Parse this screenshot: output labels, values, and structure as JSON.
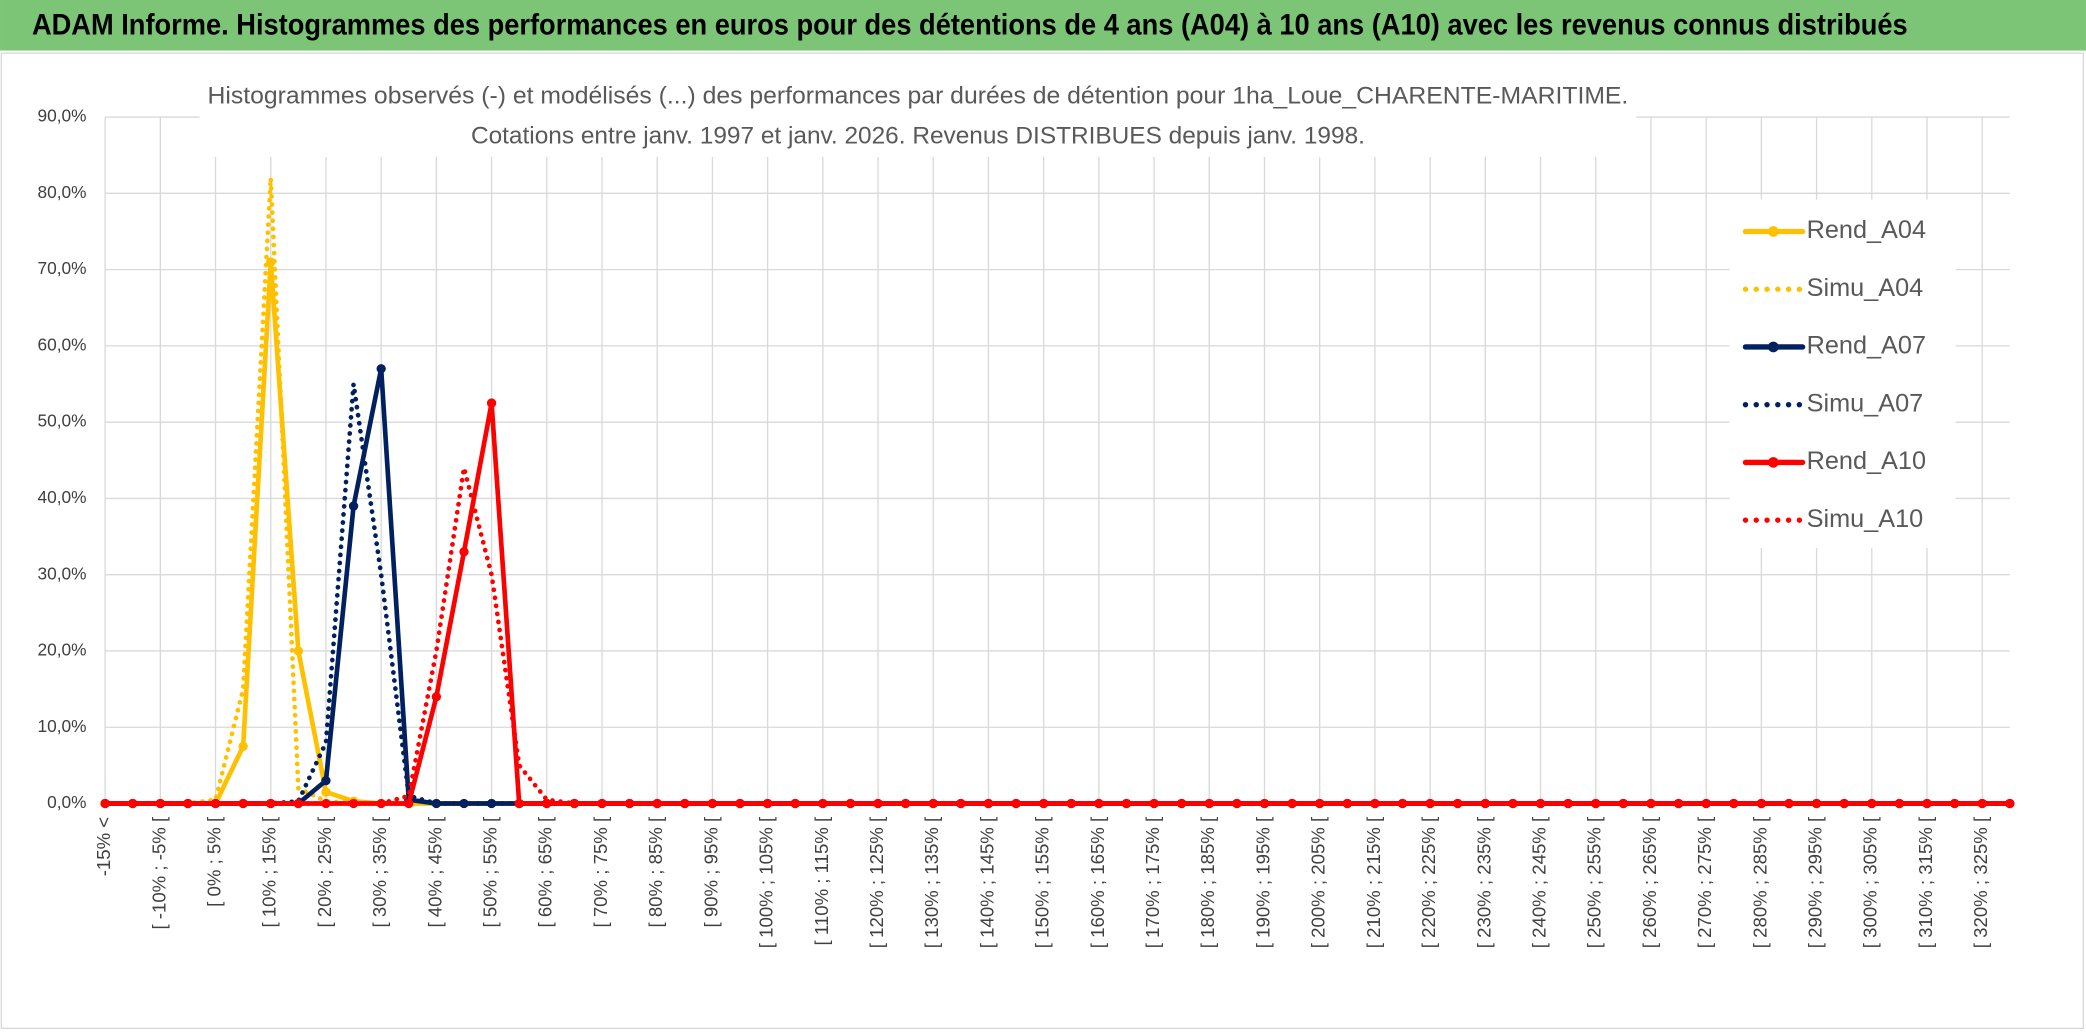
{
  "header": {
    "title": "ADAM Informe. Histogrammes des performances en euros pour des détentions de 4 ans (A04) à 10 ans (A10) avec les revenus connus distribués"
  },
  "chart_data": {
    "type": "line",
    "title": "Histogrammes observés (-) et modélisés (...) des performances par durées de détention pour 1ha_Loue_CHARENTE-MARITIME.",
    "subtitle": "Cotations entre janv. 1997 et janv. 2026. Revenus DISTRIBUES depuis janv. 1998.",
    "categories": [
      "-15% <",
      null,
      "[ -10% ; -5% [",
      null,
      "[ 0% ; 5% [",
      null,
      "[ 10% ; 15% [",
      null,
      "[ 20% ; 25% [",
      null,
      "[ 30% ; 35% [",
      null,
      "[ 40% ; 45% [",
      null,
      "[ 50% ; 55% [",
      null,
      "[ 60% ; 65% [",
      null,
      "[ 70% ; 75% [",
      null,
      "[ 80% ; 85% [",
      null,
      "[ 90% ; 95% [",
      null,
      "[ 100% ; 105% [",
      null,
      "[ 110% ; 115% [",
      null,
      "[ 120% ; 125% [",
      null,
      "[ 130% ; 135% [",
      null,
      "[ 140% ; 145% [",
      null,
      "[ 150% ; 155% [",
      null,
      "[ 160% ; 165% [",
      null,
      "[ 170% ; 175% [",
      null,
      "[ 180% ; 185% [",
      null,
      "[ 190% ; 195% [",
      null,
      "[ 200% ; 205% [",
      null,
      "[ 210% ; 215% [",
      null,
      "[ 220% ; 225% [",
      null,
      "[ 230% ; 235% [",
      null,
      "[ 240% ; 245% [",
      null,
      "[ 250% ; 255% [",
      null,
      "[ 260% ; 265% [",
      null,
      "[ 270% ; 275% [",
      null,
      "[ 280% ; 285% [",
      null,
      "[ 290% ; 295% [",
      null,
      "[ 300% ; 305% [",
      null,
      "[ 310% ; 315% [",
      null,
      "[ 320% ; 325% [",
      null
    ],
    "series": [
      {
        "name": "Rend_A04",
        "color": "#ffc000",
        "dash": "solid",
        "marker": true,
        "values": [
          0,
          0,
          0,
          0,
          0,
          7.5,
          71,
          20,
          1.5,
          0.3,
          0,
          0,
          0,
          0,
          0,
          0,
          0,
          0,
          0,
          0,
          0,
          0,
          0,
          0,
          0,
          0,
          0,
          0,
          0,
          0,
          0,
          0,
          0,
          0,
          0,
          0,
          0,
          0,
          0,
          0,
          0,
          0,
          0,
          0,
          0,
          0,
          0,
          0,
          0,
          0,
          0,
          0,
          0,
          0,
          0,
          0,
          0,
          0,
          0,
          0,
          0,
          0,
          0,
          0,
          0,
          0,
          0,
          0,
          0,
          0
        ]
      },
      {
        "name": "Simu_A04",
        "color": "#ffc000",
        "dash": "dotted",
        "marker": false,
        "values": [
          0,
          0,
          0,
          0,
          0.5,
          15,
          82,
          2,
          0.3,
          0,
          0,
          0,
          0,
          0,
          0,
          0,
          0,
          0,
          0,
          0,
          0,
          0,
          0,
          0,
          0,
          0,
          0,
          0,
          0,
          0,
          0,
          0,
          0,
          0,
          0,
          0,
          0,
          0,
          0,
          0,
          0,
          0,
          0,
          0,
          0,
          0,
          0,
          0,
          0,
          0,
          0,
          0,
          0,
          0,
          0,
          0,
          0,
          0,
          0,
          0,
          0,
          0,
          0,
          0,
          0,
          0,
          0,
          0,
          0,
          0
        ]
      },
      {
        "name": "Rend_A07",
        "color": "#002060",
        "dash": "solid",
        "marker": true,
        "values": [
          0,
          0,
          0,
          0,
          0,
          0,
          0,
          0,
          3,
          39,
          57,
          0.5,
          0,
          0,
          0,
          0,
          0,
          0,
          0,
          0,
          0,
          0,
          0,
          0,
          0,
          0,
          0,
          0,
          0,
          0,
          0,
          0,
          0,
          0,
          0,
          0,
          0,
          0,
          0,
          0,
          0,
          0,
          0,
          0,
          0,
          0,
          0,
          0,
          0,
          0,
          0,
          0,
          0,
          0,
          0,
          0,
          0,
          0,
          0,
          0,
          0,
          0,
          0,
          0,
          0,
          0,
          0,
          0,
          0,
          0
        ]
      },
      {
        "name": "Simu_A07",
        "color": "#002060",
        "dash": "dotted",
        "marker": false,
        "values": [
          0,
          0,
          0,
          0,
          0,
          0,
          0,
          0.3,
          8,
          55,
          30,
          1,
          0,
          0,
          0,
          0,
          0,
          0,
          0,
          0,
          0,
          0,
          0,
          0,
          0,
          0,
          0,
          0,
          0,
          0,
          0,
          0,
          0,
          0,
          0,
          0,
          0,
          0,
          0,
          0,
          0,
          0,
          0,
          0,
          0,
          0,
          0,
          0,
          0,
          0,
          0,
          0,
          0,
          0,
          0,
          0,
          0,
          0,
          0,
          0,
          0,
          0,
          0,
          0,
          0,
          0,
          0,
          0,
          0,
          0
        ]
      },
      {
        "name": "Rend_A10",
        "color": "#ff0000",
        "dash": "solid",
        "marker": true,
        "values": [
          0,
          0,
          0,
          0,
          0,
          0,
          0,
          0,
          0,
          0,
          0,
          0,
          14,
          33,
          52.5,
          0,
          0,
          0,
          0,
          0,
          0,
          0,
          0,
          0,
          0,
          0,
          0,
          0,
          0,
          0,
          0,
          0,
          0,
          0,
          0,
          0,
          0,
          0,
          0,
          0,
          0,
          0,
          0,
          0,
          0,
          0,
          0,
          0,
          0,
          0,
          0,
          0,
          0,
          0,
          0,
          0,
          0,
          0,
          0,
          0,
          0,
          0,
          0,
          0,
          0,
          0,
          0,
          0,
          0,
          0
        ]
      },
      {
        "name": "Simu_A10",
        "color": "#ff0000",
        "dash": "dotted",
        "marker": false,
        "values": [
          0,
          0,
          0,
          0,
          0,
          0,
          0,
          0,
          0,
          0,
          0,
          1,
          20,
          44,
          30,
          5,
          0.5,
          0,
          0,
          0,
          0,
          0,
          0,
          0,
          0,
          0,
          0,
          0,
          0,
          0,
          0,
          0,
          0,
          0,
          0,
          0,
          0,
          0,
          0,
          0,
          0,
          0,
          0,
          0,
          0,
          0,
          0,
          0,
          0,
          0,
          0,
          0,
          0,
          0,
          0,
          0,
          0,
          0,
          0,
          0,
          0,
          0,
          0,
          0,
          0,
          0,
          0,
          0,
          0,
          0
        ]
      }
    ],
    "ylim": [
      0,
      90
    ],
    "yticks": [
      {
        "value": 0,
        "label": "0,0%"
      },
      {
        "value": 10,
        "label": "10,0%"
      },
      {
        "value": 20,
        "label": "20,0%"
      },
      {
        "value": 30,
        "label": "30,0%"
      },
      {
        "value": 40,
        "label": "40,0%"
      },
      {
        "value": 50,
        "label": "50,0%"
      },
      {
        "value": 60,
        "label": "60,0%"
      },
      {
        "value": 70,
        "label": "70,0%"
      },
      {
        "value": 80,
        "label": "80,0%"
      },
      {
        "value": 90,
        "label": "90,0%"
      }
    ],
    "grid": true,
    "legend": "right"
  }
}
